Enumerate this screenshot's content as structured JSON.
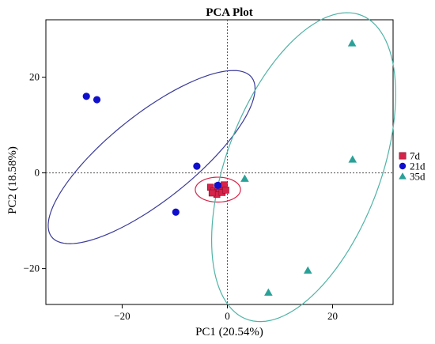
{
  "chart_data": {
    "type": "scatter",
    "title": "PCA Plot",
    "xlabel": "PC1 (20.54%)",
    "ylabel": "PC2 (18.58%)",
    "xlim": [
      -34.5,
      31.5
    ],
    "ylim": [
      -27.5,
      32
    ],
    "xticks": [
      -20,
      0,
      20
    ],
    "yticks": [
      -20,
      0,
      20
    ],
    "xtick_labels": [
      "−20",
      "0",
      "20"
    ],
    "ytick_labels": [
      "−20",
      "0",
      "20"
    ],
    "grid": false,
    "reference_lines": [
      0,
      0
    ],
    "legend_position": "right",
    "series": [
      {
        "name": "7d",
        "color": "#d6234a",
        "marker": "square",
        "points": [
          [
            -3.2,
            -3.0
          ],
          [
            -2.6,
            -3.8
          ],
          [
            -2.0,
            -4.5
          ],
          [
            -1.5,
            -3.3
          ],
          [
            -1.0,
            -4.1
          ],
          [
            -0.6,
            -2.5
          ],
          [
            -0.3,
            -3.6
          ],
          [
            -1.8,
            -2.8
          ],
          [
            -2.9,
            -4.2
          ]
        ],
        "ellipse": {
          "cx": -1.8,
          "cy": -3.5,
          "rx": 4.3,
          "ry": 2.6,
          "angle": 0
        }
      },
      {
        "name": "21d",
        "color": "#1010cc",
        "marker": "circle",
        "points": [
          [
            -26.8,
            16.0
          ],
          [
            -24.8,
            15.3
          ],
          [
            -5.8,
            1.4
          ],
          [
            -1.8,
            -2.6
          ],
          [
            -9.8,
            -8.2
          ]
        ],
        "ellipse": {
          "cx": -14.4,
          "cy": 3.3,
          "rx": 25.3,
          "ry": 8.6,
          "angle": 42
        }
      },
      {
        "name": "35d",
        "color": "#2aa198",
        "marker": "triangle",
        "points": [
          [
            3.3,
            -1.2
          ],
          [
            23.7,
            27.1
          ],
          [
            23.8,
            2.8
          ],
          [
            15.3,
            -20.4
          ],
          [
            7.8,
            -25.0
          ]
        ],
        "ellipse": {
          "cx": 14.5,
          "cy": 1.2,
          "rx": 14.8,
          "ry": 33.6,
          "angle": -18
        }
      }
    ]
  }
}
